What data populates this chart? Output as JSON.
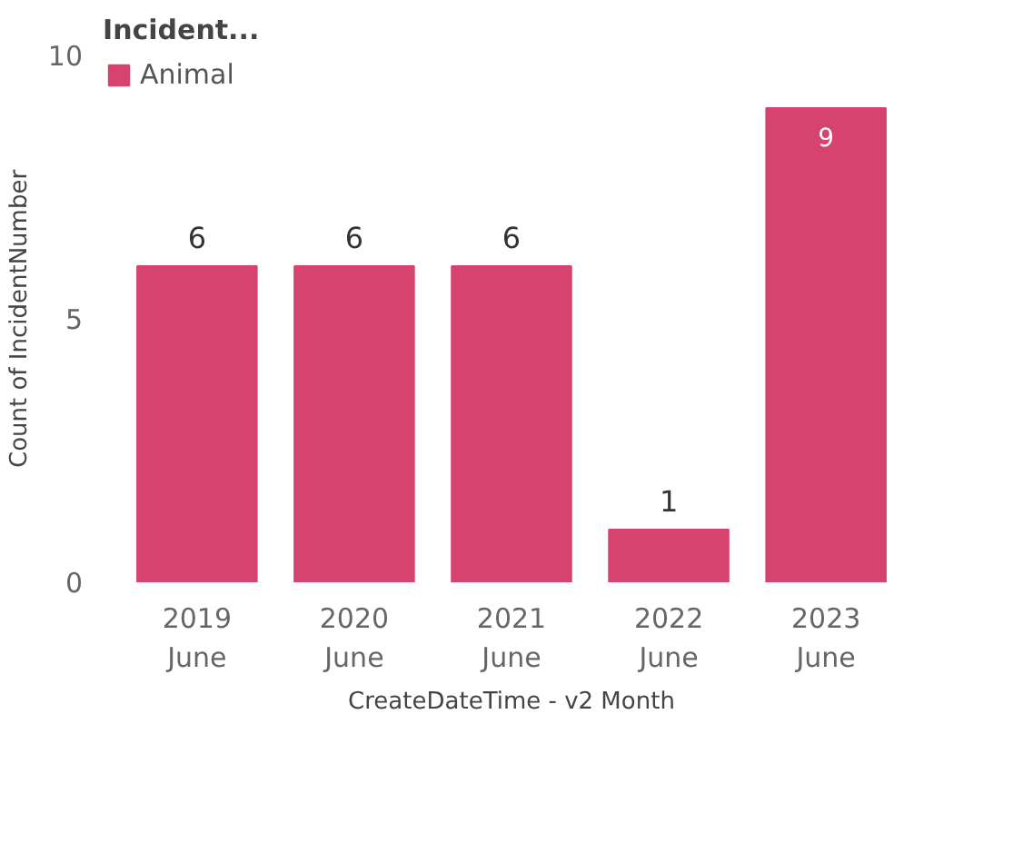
{
  "chart_data": {
    "type": "bar",
    "legend_title": "Incident...",
    "xlabel": "CreateDateTime - v2 Month",
    "ylabel": "Count of IncidentNumber",
    "categories": [
      "2019\nJune",
      "2020\nJune",
      "2021\nJune",
      "2022\nJune",
      "2023\nJune"
    ],
    "series": [
      {
        "name": "Animal",
        "color": "#d6436e",
        "values": [
          6,
          6,
          6,
          1,
          9
        ]
      }
    ],
    "ylim": [
      0,
      10
    ],
    "yticks": [
      0,
      5,
      10
    ],
    "grid": false,
    "legend": "top left",
    "data_labels": true
  }
}
